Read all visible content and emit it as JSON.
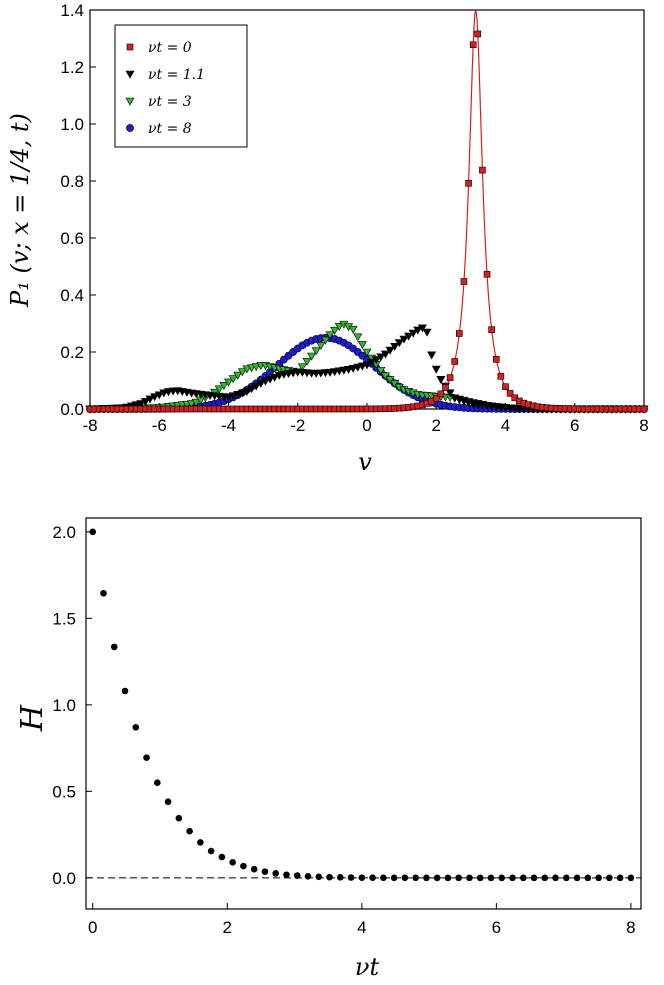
{
  "chart_data": [
    {
      "type": "scatter",
      "xlabel": "v",
      "ylabel": "P₁ (v; x = 1/4, t)",
      "xlim": [
        -8,
        8
      ],
      "ylim": [
        0,
        1.4
      ],
      "xticks": [
        "-8",
        "-6",
        "-4",
        "-2",
        "0",
        "2",
        "4",
        "6",
        "8"
      ],
      "yticks": [
        "0.0",
        "0.2",
        "0.4",
        "0.6",
        "0.8",
        "1.0",
        "1.2",
        "1.4"
      ],
      "grid": false,
      "legend_position": "top-left",
      "series": [
        {
          "name": "νt = 0",
          "marker": "square",
          "color": "#d42020",
          "line": true,
          "x0": 0,
          "y0": 1.4,
          "peak_x": 3.14,
          "peak_y": 1.4,
          "width": 0.24,
          "points": [
            [
              -8,
              0
            ],
            [
              -6,
              0
            ],
            [
              -4,
              0
            ],
            [
              -2,
              0
            ],
            [
              0,
              0
            ],
            [
              1,
              0.003
            ],
            [
              1.5,
              0.008
            ],
            [
              2,
              0.02
            ],
            [
              2.3,
              0.04
            ],
            [
              2.5,
              0.07
            ],
            [
              2.7,
              0.13
            ],
            [
              2.85,
              0.26
            ],
            [
              3.0,
              0.84
            ],
            [
              3.14,
              1.4
            ],
            [
              3.28,
              0.99
            ],
            [
              3.42,
              0.64
            ],
            [
              3.56,
              0.36
            ],
            [
              3.7,
              0.22
            ],
            [
              3.85,
              0.13
            ],
            [
              4.0,
              0.08
            ],
            [
              4.2,
              0.05
            ],
            [
              4.5,
              0.02
            ],
            [
              5,
              0.008
            ],
            [
              6,
              0
            ],
            [
              8,
              0
            ]
          ]
        },
        {
          "name": "νt = 1.1",
          "marker": "triangle-down",
          "color": "#000000",
          "line": false,
          "points": [
            [
              -8,
              0
            ],
            [
              -7,
              0.005
            ],
            [
              -6.5,
              0.02
            ],
            [
              -6.2,
              0.04
            ],
            [
              -5.8,
              0.06
            ],
            [
              -5.5,
              0.065
            ],
            [
              -5,
              0.055
            ],
            [
              -4.5,
              0.048
            ],
            [
              -4,
              0.042
            ],
            [
              -3.5,
              0.06
            ],
            [
              -3,
              0.095
            ],
            [
              -2.5,
              0.12
            ],
            [
              -2,
              0.13
            ],
            [
              -1.5,
              0.125
            ],
            [
              -1,
              0.13
            ],
            [
              -0.5,
              0.14
            ],
            [
              0,
              0.155
            ],
            [
              0.5,
              0.19
            ],
            [
              1,
              0.24
            ],
            [
              1.5,
              0.28
            ],
            [
              1.7,
              0.29
            ],
            [
              1.9,
              0.17
            ],
            [
              2.1,
              0.11
            ],
            [
              2.5,
              0.04
            ],
            [
              3,
              0.02
            ],
            [
              4,
              0.005
            ],
            [
              5,
              0
            ],
            [
              8,
              0
            ]
          ]
        },
        {
          "name": "νt = 3",
          "marker": "triangle-down",
          "color": "#2fb82f",
          "line": false,
          "points": [
            [
              -8,
              0
            ],
            [
              -6,
              0.005
            ],
            [
              -5,
              0.02
            ],
            [
              -4.5,
              0.05
            ],
            [
              -4,
              0.095
            ],
            [
              -3.5,
              0.14
            ],
            [
              -3,
              0.155
            ],
            [
              -2.5,
              0.14
            ],
            [
              -2,
              0.13
            ],
            [
              -1.5,
              0.2
            ],
            [
              -1,
              0.27
            ],
            [
              -0.7,
              0.3
            ],
            [
              -0.4,
              0.28
            ],
            [
              0,
              0.2
            ],
            [
              0.5,
              0.12
            ],
            [
              1,
              0.07
            ],
            [
              1.5,
              0.05
            ],
            [
              2,
              0.045
            ],
            [
              2.5,
              0.04
            ],
            [
              3,
              0.025
            ],
            [
              3.5,
              0.012
            ],
            [
              4,
              0.005
            ],
            [
              5,
              0
            ],
            [
              8,
              0
            ]
          ]
        },
        {
          "name": "νt = 8",
          "marker": "circle",
          "color": "#1c1cd0",
          "line": false,
          "center": -1.2,
          "amp": 0.25,
          "sigma": 1.4
        }
      ]
    },
    {
      "type": "scatter",
      "xlabel": "νt",
      "ylabel": "H",
      "xlim": [
        -0.1,
        8.15
      ],
      "ylim": [
        -0.18,
        2.08
      ],
      "xticks": [
        "0",
        "2",
        "4",
        "6",
        "8"
      ],
      "yticks": [
        "0.0",
        "0.5",
        "1.0",
        "1.5",
        "2.0"
      ],
      "grid": false,
      "reference_line": {
        "y": 0,
        "style": "dashed"
      },
      "series": [
        {
          "marker": "circle",
          "color": "#000000",
          "points": [
            [
              0,
              2.0
            ],
            [
              0.16,
              1.645
            ],
            [
              0.32,
              1.335
            ],
            [
              0.48,
              1.08
            ],
            [
              0.64,
              0.87
            ],
            [
              0.8,
              0.695
            ],
            [
              0.96,
              0.55
            ],
            [
              1.12,
              0.44
            ],
            [
              1.28,
              0.345
            ],
            [
              1.44,
              0.27
            ],
            [
              1.6,
              0.205
            ],
            [
              1.76,
              0.155
            ],
            [
              1.92,
              0.12
            ],
            [
              2.08,
              0.09
            ],
            [
              2.24,
              0.068
            ],
            [
              2.4,
              0.05
            ],
            [
              2.56,
              0.036
            ],
            [
              2.72,
              0.026
            ],
            [
              2.88,
              0.018
            ],
            [
              3.04,
              0.013
            ],
            [
              3.2,
              0.009
            ],
            [
              3.36,
              0.006
            ],
            [
              3.52,
              0.004
            ],
            [
              3.68,
              0.003
            ],
            [
              3.84,
              0.002
            ],
            [
              4.0,
              0.001
            ],
            [
              4.16,
              0.0008
            ],
            [
              4.32,
              0.0005
            ],
            [
              4.48,
              0.0003
            ],
            [
              4.64,
              0.0002
            ],
            [
              4.8,
              0.0001
            ],
            [
              4.96,
              0
            ],
            [
              5.12,
              0
            ],
            [
              5.28,
              0
            ],
            [
              5.44,
              0
            ],
            [
              5.6,
              0
            ],
            [
              5.76,
              0
            ],
            [
              5.92,
              0
            ],
            [
              6.08,
              0
            ],
            [
              6.24,
              0
            ],
            [
              6.4,
              0
            ],
            [
              6.56,
              0
            ],
            [
              6.72,
              0
            ],
            [
              6.88,
              0
            ],
            [
              7.04,
              0
            ],
            [
              7.2,
              0
            ],
            [
              7.36,
              0
            ],
            [
              7.52,
              0
            ],
            [
              7.68,
              0
            ],
            [
              7.84,
              0
            ],
            [
              8.0,
              0
            ]
          ]
        }
      ]
    }
  ]
}
